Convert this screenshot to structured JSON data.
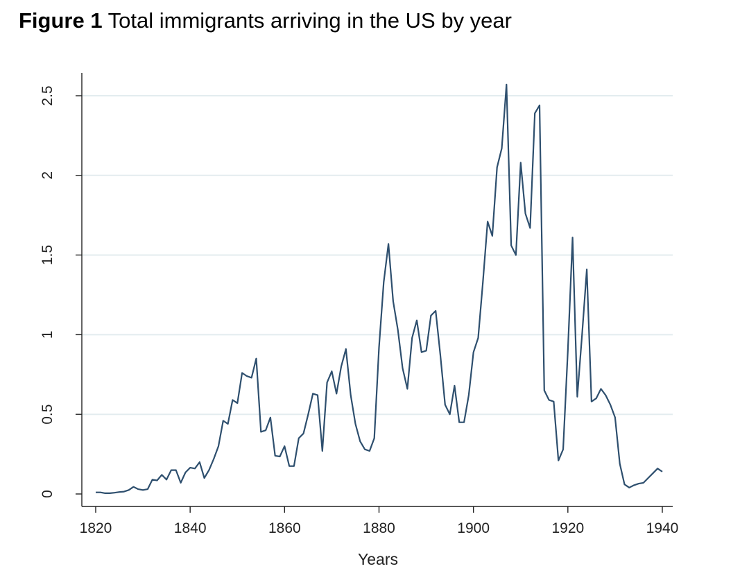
{
  "figure": {
    "label": "Figure 1",
    "title": "Total immigrants arriving in the US by year"
  },
  "chart_data": {
    "type": "line",
    "title": "Total immigrants arriving in the US by year",
    "xlabel": "Years",
    "ylabel": "",
    "xlim": [
      1820,
      1940
    ],
    "ylim": [
      0,
      2.5
    ],
    "xticks": [
      1820,
      1840,
      1860,
      1880,
      1900,
      1920,
      1940
    ],
    "yticks": [
      0,
      0.5,
      1,
      1.5,
      2,
      2.5
    ],
    "xtick_labels": [
      "1820",
      "1840",
      "1860",
      "1880",
      "1900",
      "1920",
      "1940"
    ],
    "ytick_labels": [
      "0",
      "0.5",
      "1",
      "1.5",
      "2",
      "2.5"
    ],
    "grid": "horizontal",
    "line_color": "#2e4f6e",
    "series": [
      {
        "x": [
          1820,
          1821,
          1822,
          1823,
          1824,
          1825,
          1826,
          1827,
          1828,
          1829,
          1830,
          1831,
          1832,
          1833,
          1834,
          1835,
          1836,
          1837,
          1838,
          1839,
          1840,
          1841,
          1842,
          1843,
          1844,
          1845,
          1846,
          1847,
          1848,
          1849,
          1850,
          1851,
          1852,
          1853,
          1854,
          1855,
          1856,
          1857,
          1858,
          1859,
          1860,
          1861,
          1862,
          1863,
          1864,
          1865,
          1866,
          1867,
          1868,
          1869,
          1870,
          1871,
          1872,
          1873,
          1874,
          1875,
          1876,
          1877,
          1878,
          1879,
          1880,
          1881,
          1882,
          1883,
          1884,
          1885,
          1886,
          1887,
          1888,
          1889,
          1890,
          1891,
          1892,
          1893,
          1894,
          1895,
          1896,
          1897,
          1898,
          1899,
          1900,
          1901,
          1902,
          1903,
          1904,
          1905,
          1906,
          1907,
          1908,
          1909,
          1910,
          1911,
          1912,
          1913,
          1914,
          1915,
          1916,
          1917,
          1918,
          1919,
          1920,
          1921,
          1922,
          1923,
          1924,
          1925,
          1926,
          1927,
          1928,
          1929,
          1930,
          1931,
          1932,
          1933,
          1934,
          1935,
          1936,
          1937,
          1938,
          1939,
          1940
        ],
        "values": [
          0.01,
          0.01,
          0.005,
          0.005,
          0.008,
          0.012,
          0.015,
          0.025,
          0.045,
          0.03,
          0.025,
          0.03,
          0.09,
          0.085,
          0.12,
          0.09,
          0.15,
          0.15,
          0.07,
          0.135,
          0.165,
          0.16,
          0.2,
          0.1,
          0.15,
          0.22,
          0.3,
          0.46,
          0.44,
          0.59,
          0.57,
          0.76,
          0.74,
          0.73,
          0.85,
          0.39,
          0.4,
          0.48,
          0.24,
          0.235,
          0.3,
          0.175,
          0.175,
          0.35,
          0.38,
          0.5,
          0.63,
          0.62,
          0.27,
          0.7,
          0.77,
          0.63,
          0.8,
          0.91,
          0.62,
          0.44,
          0.33,
          0.28,
          0.27,
          0.35,
          0.92,
          1.33,
          1.57,
          1.21,
          1.03,
          0.79,
          0.66,
          0.98,
          1.09,
          0.89,
          0.9,
          1.12,
          1.15,
          0.87,
          0.56,
          0.5,
          0.68,
          0.45,
          0.45,
          0.62,
          0.89,
          0.98,
          1.33,
          1.71,
          1.62,
          2.05,
          2.17,
          2.57,
          1.56,
          1.5,
          2.08,
          1.76,
          1.67,
          2.39,
          2.44,
          0.65,
          0.59,
          0.58,
          0.21,
          0.28,
          0.9,
          1.61,
          0.61,
          1.0,
          1.41,
          0.58,
          0.6,
          0.66,
          0.62,
          0.56,
          0.48,
          0.19,
          0.06,
          0.04,
          0.055,
          0.065,
          0.07,
          0.1,
          0.13,
          0.16,
          0.14
        ]
      }
    ]
  }
}
